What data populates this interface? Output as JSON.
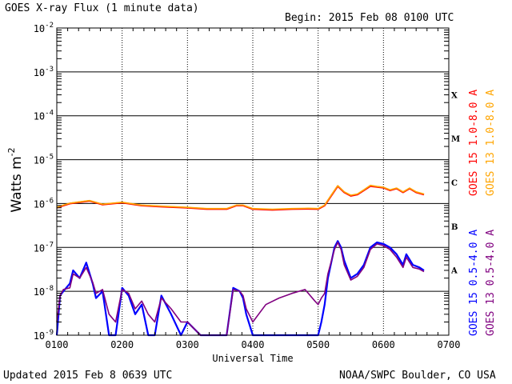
{
  "chart_data": {
    "type": "line",
    "title": "GOES X-ray Flux (1 minute data)",
    "begin_label": "Begin: 2015 Feb 08 0100 UTC",
    "xlabel": "Universal Time",
    "ylabel_main": "Watts m",
    "ylabel_exp": "-2",
    "x_ticks": [
      "0100",
      "0200",
      "0300",
      "0400",
      "0500",
      "0600",
      "0700"
    ],
    "xlim_hours": [
      1,
      7
    ],
    "y_ticks": [
      {
        "base": "10",
        "exp": "-2"
      },
      {
        "base": "10",
        "exp": "-3"
      },
      {
        "base": "10",
        "exp": "-4"
      },
      {
        "base": "10",
        "exp": "-5"
      },
      {
        "base": "10",
        "exp": "-6"
      },
      {
        "base": "10",
        "exp": "-7"
      },
      {
        "base": "10",
        "exp": "-8"
      },
      {
        "base": "10",
        "exp": "-9"
      }
    ],
    "ylim_log10": [
      -9,
      -2
    ],
    "y_scale": "log",
    "flare_classes": [
      "X",
      "M",
      "C",
      "B",
      "A"
    ],
    "grid": true,
    "legend": [
      {
        "name": "GOES 15 1.0-8.0 A",
        "color": "#ff0000"
      },
      {
        "name": "GOES 13 1.0-8.0 A",
        "color": "#ffa500"
      },
      {
        "name": "GOES 15 0.5-4.0 A",
        "color": "#0000ff"
      },
      {
        "name": "GOES 13 0.5-4.0 A",
        "color": "#800080"
      }
    ],
    "series": [
      {
        "name": "GOES 15 1.0-8.0 A",
        "color": "#ff0000",
        "x": [
          1.0,
          1.1,
          1.2,
          1.3,
          1.5,
          1.7,
          2.0,
          2.3,
          2.6,
          3.0,
          3.3,
          3.6,
          3.75,
          3.85,
          4.0,
          4.3,
          4.6,
          4.85,
          5.0,
          5.1,
          5.2,
          5.3,
          5.4,
          5.5,
          5.6,
          5.7,
          5.8,
          5.9,
          6.0,
          6.1,
          6.2,
          6.3,
          6.4,
          6.5,
          6.62
        ],
        "y": [
          8e-07,
          9e-07,
          1e-06,
          1.05e-06,
          1.15e-06,
          9.5e-07,
          1.05e-06,
          9e-07,
          8.5e-07,
          8e-07,
          7.5e-07,
          7.5e-07,
          9e-07,
          9e-07,
          7.5e-07,
          7.2e-07,
          7.5e-07,
          7.6e-07,
          7.5e-07,
          9e-07,
          1.5e-06,
          2.5e-06,
          1.8e-06,
          1.5e-06,
          1.6e-06,
          2e-06,
          2.5e-06,
          2.4e-06,
          2.3e-06,
          2e-06,
          2.2e-06,
          1.8e-06,
          2.2e-06,
          1.8e-06,
          1.6e-06
        ]
      },
      {
        "name": "GOES 13 1.0-8.0 A",
        "color": "#ffa500",
        "x": [
          1.0,
          1.1,
          1.2,
          1.3,
          1.5,
          1.7,
          2.0,
          2.3,
          2.6,
          3.0,
          3.3,
          3.6,
          3.75,
          3.85,
          4.0,
          4.3,
          4.6,
          4.85,
          5.0,
          5.1,
          5.2,
          5.3,
          5.4,
          5.5,
          5.6,
          5.7,
          5.8,
          5.9,
          6.0,
          6.1,
          6.2,
          6.3,
          6.4,
          6.5,
          6.62
        ],
        "y": [
          8.2e-07,
          9.2e-07,
          1.02e-06,
          1.07e-06,
          1.17e-06,
          9.7e-07,
          1.07e-06,
          9.2e-07,
          8.7e-07,
          8.2e-07,
          7.7e-07,
          7.7e-07,
          9.2e-07,
          9.2e-07,
          7.7e-07,
          7.4e-07,
          7.7e-07,
          7.8e-07,
          7.7e-07,
          9.2e-07,
          1.55e-06,
          2.55e-06,
          1.85e-06,
          1.55e-06,
          1.65e-06,
          2.05e-06,
          2.6e-06,
          2.45e-06,
          2.35e-06,
          2.05e-06,
          2.25e-06,
          1.85e-06,
          2.25e-06,
          1.85e-06,
          1.65e-06
        ]
      },
      {
        "name": "GOES 15 0.5-4.0 A",
        "color": "#0000ff",
        "x": [
          1.0,
          1.05,
          1.1,
          1.2,
          1.25,
          1.35,
          1.45,
          1.55,
          1.6,
          1.7,
          1.8,
          1.9,
          2.0,
          2.1,
          2.2,
          2.3,
          2.4,
          2.5,
          2.6,
          2.75,
          2.9,
          3.0,
          3.2,
          3.35,
          3.55,
          3.6,
          3.7,
          3.8,
          3.85,
          3.9,
          4.0,
          4.2,
          4.4,
          4.6,
          4.8,
          4.95,
          5.0,
          5.05,
          5.1,
          5.15,
          5.25,
          5.3,
          5.35,
          5.4,
          5.5,
          5.6,
          5.7,
          5.8,
          5.9,
          6.0,
          6.1,
          6.2,
          6.3,
          6.35,
          6.45,
          6.55,
          6.62
        ],
        "y": [
          1e-09,
          8e-09,
          1e-08,
          1.5e-08,
          3e-08,
          2e-08,
          4.5e-08,
          1.5e-08,
          7e-09,
          1e-08,
          1e-09,
          1e-09,
          1.2e-08,
          8e-09,
          3e-09,
          5e-09,
          1e-09,
          1e-09,
          8e-09,
          3e-09,
          1e-09,
          2e-09,
          1e-09,
          1e-09,
          1e-09,
          1e-09,
          1.2e-08,
          1e-08,
          7e-09,
          3e-09,
          1e-09,
          1e-09,
          1e-09,
          1e-09,
          1e-09,
          1e-09,
          1e-09,
          2e-09,
          5e-09,
          2e-08,
          1e-07,
          1.4e-07,
          1e-07,
          5e-08,
          2e-08,
          2.5e-08,
          4e-08,
          1e-07,
          1.3e-07,
          1.2e-07,
          1e-07,
          7e-08,
          4e-08,
          7e-08,
          4e-08,
          3.5e-08,
          3e-08
        ]
      },
      {
        "name": "GOES 13 0.5-4.0 A",
        "color": "#800080",
        "x": [
          1.0,
          1.05,
          1.1,
          1.2,
          1.25,
          1.35,
          1.45,
          1.55,
          1.6,
          1.7,
          1.8,
          1.9,
          2.0,
          2.1,
          2.2,
          2.3,
          2.4,
          2.5,
          2.6,
          2.75,
          2.9,
          3.0,
          3.2,
          3.35,
          3.55,
          3.6,
          3.7,
          3.8,
          3.85,
          3.9,
          4.0,
          4.2,
          4.4,
          4.6,
          4.8,
          4.95,
          5.0,
          5.05,
          5.1,
          5.15,
          5.25,
          5.3,
          5.35,
          5.4,
          5.5,
          5.6,
          5.7,
          5.8,
          5.9,
          6.0,
          6.1,
          6.2,
          6.3,
          6.35,
          6.45,
          6.55,
          6.62
        ],
        "y": [
          2e-09,
          8e-09,
          1.1e-08,
          1.2e-08,
          2.5e-08,
          2e-08,
          3.5e-08,
          1.6e-08,
          9e-09,
          1.1e-08,
          3e-09,
          2e-09,
          1.1e-08,
          9e-09,
          4e-09,
          6e-09,
          3e-09,
          2e-09,
          7e-09,
          4e-09,
          2e-09,
          2e-09,
          1e-09,
          1e-09,
          1e-09,
          1e-09,
          1.1e-08,
          1e-08,
          8e-09,
          4e-09,
          2e-09,
          5e-09,
          7e-09,
          9e-09,
          1.1e-08,
          6e-09,
          5e-09,
          7e-09,
          9e-09,
          2.5e-08,
          9e-08,
          1.3e-07,
          9e-08,
          4e-08,
          1.8e-08,
          2.2e-08,
          3.5e-08,
          9e-08,
          1.2e-07,
          1.1e-07,
          9e-08,
          6e-08,
          3.5e-08,
          6e-08,
          3.5e-08,
          3.2e-08,
          2.8e-08
        ]
      }
    ]
  },
  "footer": {
    "updated": "Updated 2015 Feb  8 0639 UTC",
    "source": "NOAA/SWPC Boulder, CO USA"
  }
}
